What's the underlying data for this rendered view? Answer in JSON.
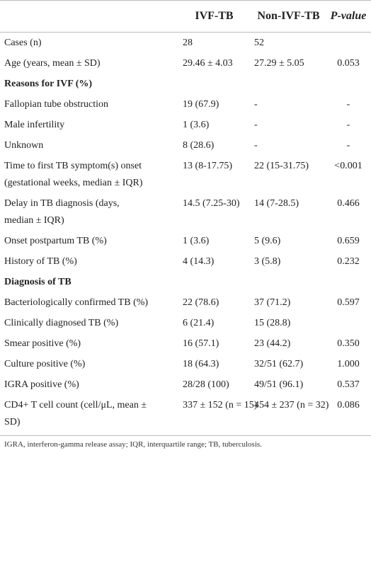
{
  "table": {
    "header": [
      "IVF-TB",
      "Non-IVF-TB",
      "P-value"
    ],
    "rows": [
      [
        "Cases (n)",
        "28",
        "52",
        ""
      ],
      [
        "Age (years, mean ± SD)",
        "29.46 ± 4.03",
        "27.29 ± 5.05",
        "0.053"
      ],
      [
        "Reasons for IVF (%)"
      ],
      [
        "Fallopian tube obstruction",
        "19 (67.9)",
        "-",
        "-"
      ],
      [
        "Male infertility",
        "1 (3.6)",
        "-",
        "-"
      ],
      [
        "Unknown",
        "8 (28.6)",
        "-",
        "-"
      ],
      [
        "Time to first TB symptom(s) onset (gestational weeks, median ± IQR)",
        "13 (8-17.75)",
        "22 (15-31.75)",
        "<0.001"
      ],
      [
        "Delay in TB diagnosis (days, median ± IQR)",
        "14.5 (7.25-30)",
        "14 (7-28.5)",
        "0.466"
      ],
      [
        "Onset postpartum TB (%)",
        "1 (3.6)",
        "5 (9.6)",
        "0.659"
      ],
      [
        "History of TB (%)",
        "4 (14.3)",
        "3 (5.8)",
        "0.232"
      ],
      [
        "Diagnosis of TB"
      ],
      [
        "Bacteriologically confirmed TB (%)",
        "22 (78.6)",
        "37 (71.2)",
        "0.597"
      ],
      [
        "Clinically diagnosed TB (%)",
        "6 (21.4)",
        "15 (28.8)",
        ""
      ],
      [
        "Smear positive (%)",
        "16 (57.1)",
        "23 (44.2)",
        "0.350"
      ],
      [
        "Culture positive (%)",
        "18 (64.3)",
        "32/51 (62.7)",
        "1.000"
      ],
      [
        "IGRA positive (%)",
        "28/28 (100)",
        "49/51 (96.1)",
        "0.537"
      ],
      [
        "CD4+ T cell count (cell/μL, mean ± SD)",
        "337 ± 152 (n = 15)",
        "454 ± 237 (n = 32)",
        "0.086"
      ]
    ],
    "footnote": "IGRA, interferon-gamma release assay; IQR, interquartile range; TB, tuberculosis."
  }
}
